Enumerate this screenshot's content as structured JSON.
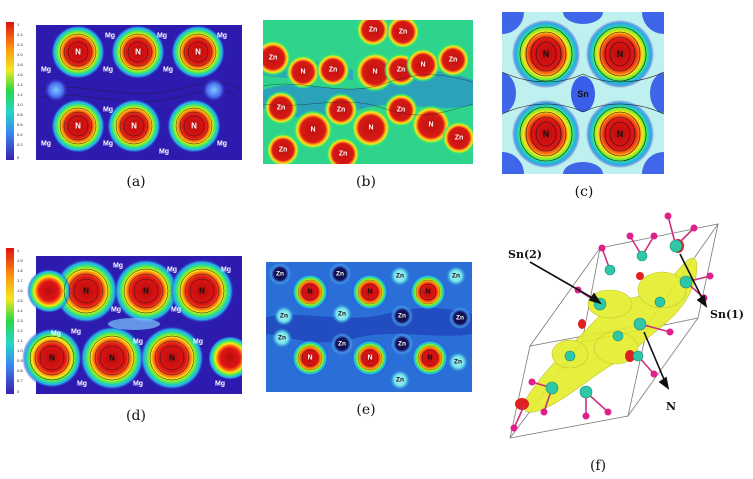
{
  "captions": {
    "a": "(a)",
    "b": "(b)",
    "c": "(c)",
    "d": "(d)",
    "e": "(e)",
    "f": "(f)"
  },
  "labels": {
    "mg": "Mg",
    "n": "N",
    "zn": "Zn",
    "sn": "Sn",
    "sn1": "Sn(1)",
    "sn2": "Sn(2)"
  },
  "colorbar_a": [
    "1",
    "2.4",
    "2.3",
    "2.0",
    "1.8",
    "1.6",
    "1.4",
    "1.2",
    "1.0",
    "0.8",
    "0.6",
    "0.4",
    "0.2",
    "0"
  ],
  "colorbar_d": [
    "1",
    "1.9",
    "1.8",
    "1.7",
    "1.6",
    "1.5",
    "1.4",
    "1.3",
    "1.2",
    "1.1",
    "1.0",
    "0.9",
    "0.8",
    "0.7",
    "0"
  ],
  "palette": {
    "background": "#2d1bb0",
    "contour": "#1a1a1a",
    "high": "#d21010",
    "mid": "#1ec832",
    "low": "#3aa0ff"
  }
}
